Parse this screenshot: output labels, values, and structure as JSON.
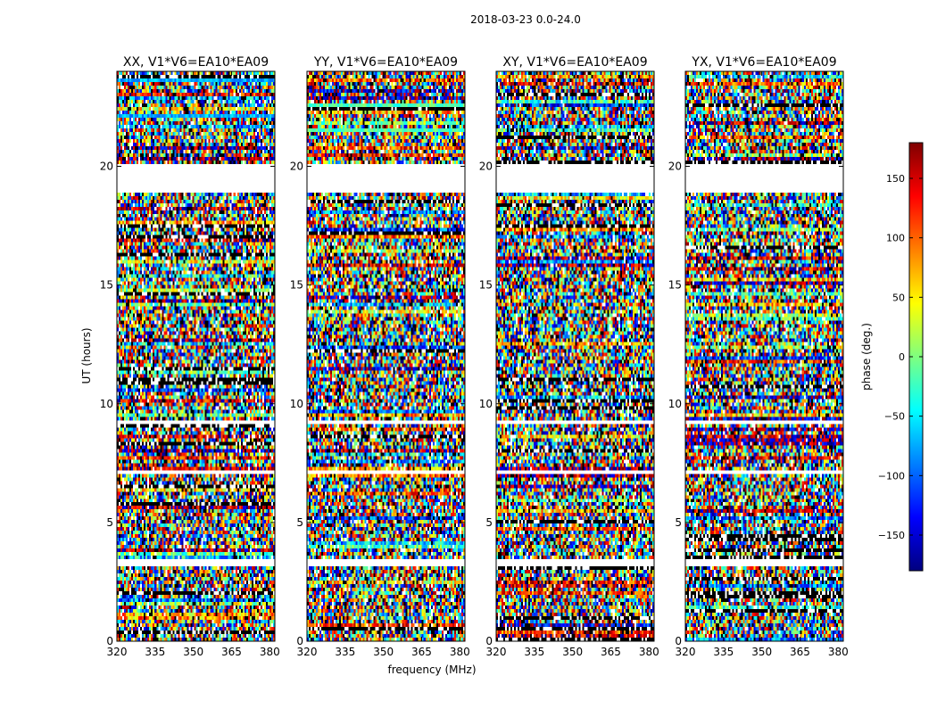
{
  "figure": {
    "suptitle": "2018-03-23 0.0-24.0",
    "xlabel": "frequency (MHz)",
    "ylabel": "UT (hours)",
    "colorbar": {
      "label": "phase (deg.)",
      "range": [
        -180,
        180
      ],
      "ticks": [
        "150",
        "100",
        "50",
        "0",
        "−50",
        "−100",
        "−150"
      ],
      "tick_values": [
        150,
        100,
        50,
        0,
        -50,
        -100,
        -150
      ],
      "colormap": "jet",
      "stops": [
        "#00007f",
        "#0000ff",
        "#007fff",
        "#00ffff",
        "#7fff7f",
        "#ffff00",
        "#ff7f00",
        "#ff0000",
        "#7f0000"
      ]
    }
  },
  "chart_data": [
    {
      "type": "heatmap",
      "title": "XX, V1*V6=EA10*EA09",
      "xlabel": "frequency (MHz)",
      "ylabel": "UT (hours)",
      "xlim": [
        320,
        382
      ],
      "ylim": [
        0,
        24
      ],
      "xticks": [
        "320",
        "335",
        "350",
        "365",
        "380"
      ],
      "xtick_values": [
        320,
        335,
        350,
        365,
        380
      ],
      "yticks": [
        "0",
        "5",
        "10",
        "15",
        "20"
      ],
      "ytick_values": [
        0,
        5,
        10,
        15,
        20
      ],
      "value": "phase (deg.)",
      "masked_ut_ranges": [
        [
          18.9,
          20.1
        ],
        [
          9.1,
          9.3
        ],
        [
          7.0,
          7.2
        ],
        [
          3.1,
          3.4
        ]
      ]
    },
    {
      "type": "heatmap",
      "title": "YY, V1*V6=EA10*EA09",
      "xlabel": "frequency (MHz)",
      "ylabel": "UT (hours)",
      "xlim": [
        320,
        382
      ],
      "ylim": [
        0,
        24
      ],
      "xticks": [
        "320",
        "335",
        "350",
        "365",
        "380"
      ],
      "xtick_values": [
        320,
        335,
        350,
        365,
        380
      ],
      "yticks": [
        "0",
        "5",
        "10",
        "15",
        "20"
      ],
      "ytick_values": [
        0,
        5,
        10,
        15,
        20
      ],
      "value": "phase (deg.)",
      "masked_ut_ranges": [
        [
          18.9,
          20.1
        ],
        [
          9.1,
          9.3
        ],
        [
          7.0,
          7.2
        ],
        [
          3.1,
          3.4
        ]
      ]
    },
    {
      "type": "heatmap",
      "title": "XY, V1*V6=EA10*EA09",
      "xlabel": "frequency (MHz)",
      "ylabel": "UT (hours)",
      "xlim": [
        320,
        382
      ],
      "ylim": [
        0,
        24
      ],
      "xticks": [
        "320",
        "335",
        "350",
        "365",
        "380"
      ],
      "xtick_values": [
        320,
        335,
        350,
        365,
        380
      ],
      "yticks": [
        "0",
        "5",
        "10",
        "15",
        "20"
      ],
      "ytick_values": [
        0,
        5,
        10,
        15,
        20
      ],
      "value": "phase (deg.)",
      "masked_ut_ranges": [
        [
          18.9,
          20.1
        ],
        [
          9.1,
          9.3
        ],
        [
          7.0,
          7.2
        ],
        [
          3.1,
          3.4
        ]
      ]
    },
    {
      "type": "heatmap",
      "title": "YX, V1*V6=EA10*EA09",
      "xlabel": "frequency (MHz)",
      "ylabel": "UT (hours)",
      "xlim": [
        320,
        382
      ],
      "ylim": [
        0,
        24
      ],
      "xticks": [
        "320",
        "335",
        "350",
        "365",
        "380"
      ],
      "xtick_values": [
        320,
        335,
        350,
        365,
        380
      ],
      "yticks": [
        "0",
        "5",
        "10",
        "15",
        "20"
      ],
      "ytick_values": [
        0,
        5,
        10,
        15,
        20
      ],
      "value": "phase (deg.)",
      "masked_ut_ranges": [
        [
          18.9,
          20.1
        ],
        [
          9.1,
          9.3
        ],
        [
          7.0,
          7.2
        ],
        [
          3.1,
          3.4
        ]
      ]
    }
  ]
}
